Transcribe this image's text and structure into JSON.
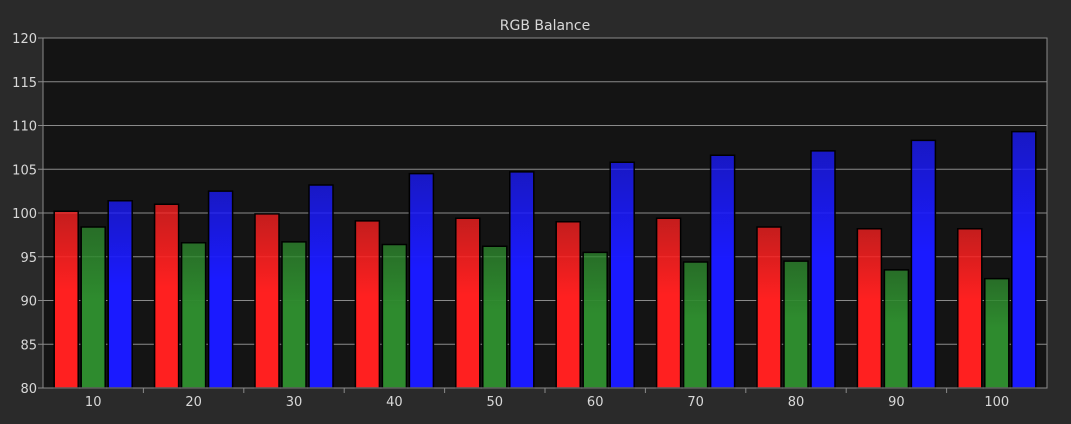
{
  "chart_data": {
    "type": "bar",
    "title": "RGB Balance",
    "xlabel": "",
    "ylabel": "",
    "categories": [
      "10",
      "20",
      "30",
      "40",
      "50",
      "60",
      "70",
      "80",
      "90",
      "100"
    ],
    "ylim": [
      80,
      120
    ],
    "yticks": [
      80,
      85,
      90,
      95,
      100,
      105,
      110,
      115,
      120
    ],
    "ytick_labels": [
      "80",
      "85",
      "90",
      "95",
      "100",
      "105",
      "110",
      "115",
      "120"
    ],
    "grid": true,
    "legend": "none",
    "series": [
      {
        "key": "red",
        "color": "#ff2020",
        "values": [
          100.2,
          101.0,
          99.9,
          99.1,
          99.4,
          99.0,
          99.4,
          98.4,
          98.2,
          98.2
        ]
      },
      {
        "key": "green",
        "color": "#2e8b2e",
        "values": [
          98.4,
          96.6,
          96.7,
          96.4,
          96.2,
          95.5,
          94.4,
          94.5,
          93.5,
          92.5
        ]
      },
      {
        "key": "blue",
        "color": "#1a1aff",
        "values": [
          101.4,
          102.5,
          103.2,
          104.5,
          104.7,
          105.8,
          106.6,
          107.1,
          108.3,
          109.3
        ]
      }
    ],
    "colors": {
      "background": "#2a2a2a",
      "plot_background": "#141414",
      "grid": "#8a8a8a",
      "text": "#d8d8d8"
    }
  }
}
